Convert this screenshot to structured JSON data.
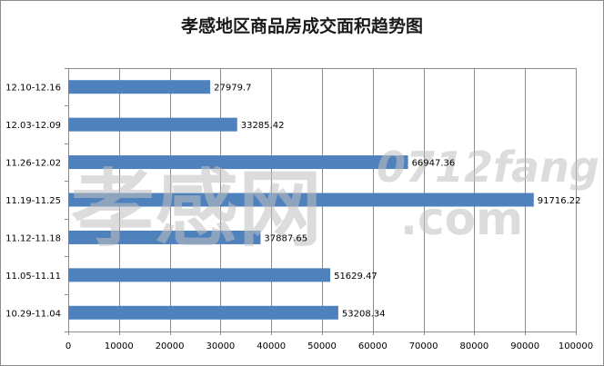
{
  "chart_data": {
    "type": "bar",
    "orientation": "horizontal",
    "title": "孝感地区商品房成交面积趋势图",
    "categories": [
      "10.29-11.04",
      "11.05-11.11",
      "11.12-11.18",
      "11.19-11.25",
      "11.26-12.02",
      "12.03-12.09",
      "12.10-12.16"
    ],
    "values": [
      53208.34,
      51629.47,
      37887.65,
      91716.22,
      66947.36,
      33285.42,
      27979.7
    ],
    "data_labels": [
      "53208.34",
      "51629.47",
      "37887.65",
      "91716.22",
      "66947.36",
      "33285.42",
      "27979.7"
    ],
    "xlim": [
      0,
      100000
    ],
    "xticks": [
      0,
      10000,
      20000,
      30000,
      40000,
      50000,
      60000,
      70000,
      80000,
      90000,
      100000
    ],
    "grid": true,
    "legend": "none",
    "bar_color": "#4f81bd"
  },
  "watermark": {
    "brand_chars": "孝感网",
    "domain_line1": "0712fang",
    "domain_line2": ".com"
  }
}
